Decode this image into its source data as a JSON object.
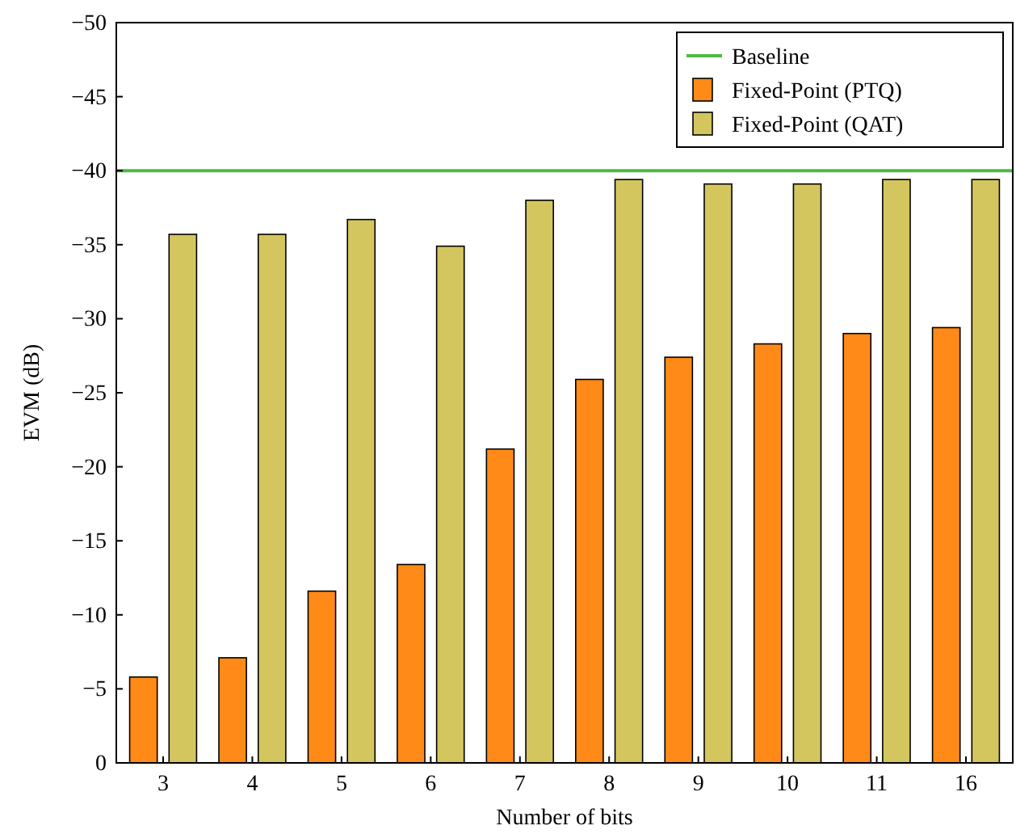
{
  "chart_data": {
    "type": "bar",
    "xlabel": "Number of bits",
    "ylabel": "EVM (dB)",
    "categories": [
      "3",
      "4",
      "5",
      "6",
      "7",
      "8",
      "9",
      "10",
      "11",
      "16"
    ],
    "series": [
      {
        "name": "Fixed-Point (PTQ)",
        "color": "#ff8a17",
        "values": [
          -5.8,
          -7.1,
          -11.6,
          -13.4,
          -21.2,
          -25.9,
          -27.4,
          -28.3,
          -29.0,
          -29.4
        ]
      },
      {
        "name": "Fixed-Point (QAT)",
        "color": "#d4c65e",
        "values": [
          -35.7,
          -35.7,
          -36.7,
          -34.9,
          -38.0,
          -39.4,
          -39.1,
          -39.1,
          -39.4,
          -39.4
        ]
      }
    ],
    "ref_lines": [
      {
        "axis": "y",
        "value": -40,
        "label": "Baseline",
        "color": "#4cb944"
      }
    ],
    "ylim": [
      0,
      -50
    ],
    "yticks": [
      0,
      {
        "value": -5,
        "label": "−5"
      },
      {
        "value": -10,
        "label": "−10"
      },
      {
        "value": -15,
        "label": "−15"
      },
      {
        "value": -20,
        "label": "−20"
      },
      {
        "value": -25,
        "label": "−25"
      },
      {
        "value": -30,
        "label": "−30"
      },
      {
        "value": -35,
        "label": "−35"
      },
      {
        "value": -40,
        "label": "−40"
      },
      {
        "value": -45,
        "label": "−45"
      },
      {
        "value": -50,
        "label": "−50"
      }
    ],
    "legend": "top right"
  }
}
